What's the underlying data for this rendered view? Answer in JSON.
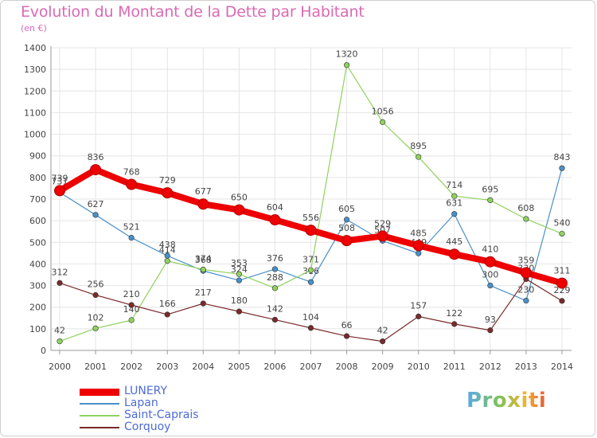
{
  "header": {
    "title": "Evolution du Montant de la Dette par Habitant",
    "subtitle": "(en €)"
  },
  "logo": {
    "text": "Proxiti"
  },
  "chart_data": {
    "type": "line",
    "x": [
      2000,
      2001,
      2002,
      2003,
      2004,
      2005,
      2006,
      2007,
      2008,
      2009,
      2010,
      2011,
      2012,
      2013,
      2014
    ],
    "ylim": [
      0,
      1400
    ],
    "yticks": [
      0,
      100,
      200,
      300,
      400,
      500,
      600,
      700,
      800,
      900,
      1000,
      1100,
      1200,
      1300,
      1400
    ],
    "grid": true,
    "legend_position": "bottom-left",
    "series": [
      {
        "name": "Lapan",
        "color": "#4a90c9",
        "width": 1.2,
        "values": [
          731,
          627,
          521,
          438,
          368,
          324,
          376,
          316,
          605,
          507,
          449,
          631,
          300,
          230,
          843
        ],
        "labels": [
          "731",
          "627",
          "521",
          "438",
          "368",
          "324",
          "376",
          "316",
          "605",
          "507",
          "449",
          "631",
          "300",
          "230",
          "843"
        ]
      },
      {
        "name": "Saint-Caprais",
        "color": "#8fd25f",
        "width": 1.2,
        "values": [
          42,
          102,
          140,
          414,
          374,
          353,
          288,
          371,
          1320,
          1056,
          895,
          714,
          695,
          608,
          540
        ],
        "labels": [
          "42",
          "102",
          "140",
          "414",
          "374",
          "353",
          "288",
          "371",
          "1320",
          "1056",
          "895",
          "714",
          "695",
          "608",
          "540"
        ]
      },
      {
        "name": "Corquoy",
        "color": "#7a2a2a",
        "width": 1.2,
        "values": [
          312,
          256,
          210,
          166,
          217,
          180,
          142,
          104,
          66,
          42,
          157,
          122,
          93,
          330,
          229
        ],
        "labels": [
          "312",
          "256",
          "210",
          "166",
          "217",
          "180",
          "142",
          "104",
          "66",
          "42",
          "157",
          "122",
          "93",
          "330",
          "229"
        ]
      },
      {
        "name": "LUNERY",
        "color": "#ee0000",
        "width": 8,
        "values": [
          739,
          836,
          768,
          729,
          677,
          650,
          604,
          556,
          508,
          529,
          485,
          445,
          410,
          359,
          311
        ],
        "labels": [
          "739",
          "836",
          "768",
          "729",
          "677",
          "650",
          "604",
          "556",
          "508",
          "529",
          "485",
          "445",
          "410",
          "359",
          "311"
        ]
      }
    ]
  }
}
